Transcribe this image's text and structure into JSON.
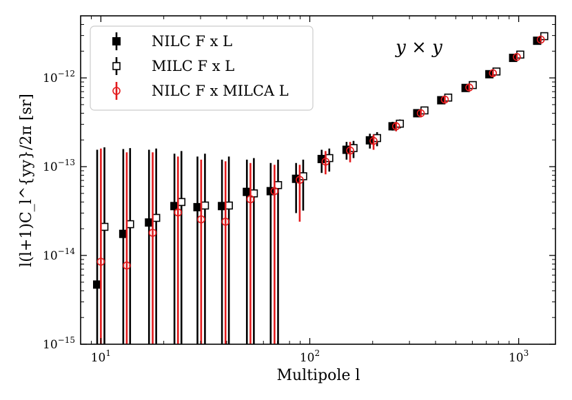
{
  "chart_data": {
    "type": "scatter",
    "x_scale": "log",
    "y_scale": "log",
    "xlim": [
      8,
      1500
    ],
    "ylim": [
      1e-15,
      5e-12
    ],
    "xlabel": "Multipole l",
    "ylabel": "l(l+1)C_l^{yy}/2π [sr]",
    "annotation": "y × y",
    "legend_position": "upper-left",
    "x_ticks": [
      {
        "value": 10,
        "base": "10",
        "exp": "1"
      },
      {
        "value": 100,
        "base": "10",
        "exp": "2"
      },
      {
        "value": 1000,
        "base": "10",
        "exp": "3"
      }
    ],
    "y_ticks": [
      {
        "value": 1e-15,
        "base": "10",
        "exp": "−15"
      },
      {
        "value": 1e-14,
        "base": "10",
        "exp": "−14"
      },
      {
        "value": 1e-13,
        "base": "10",
        "exp": "−13"
      },
      {
        "value": 1e-12,
        "base": "10",
        "exp": "−12"
      }
    ],
    "series": [
      {
        "name": "NILC F x L",
        "marker": "filled-square",
        "color": "#000000",
        "x": [
          9.6,
          12.8,
          17,
          22.5,
          29,
          38,
          50,
          65,
          86,
          114,
          150,
          194,
          249,
          327,
          426,
          557,
          724,
          941,
          1226
        ],
        "y": [
          4.7e-15,
          1.75e-14,
          2.35e-14,
          3.6e-14,
          3.5e-14,
          3.6e-14,
          5.2e-14,
          5.3e-14,
          7.3e-14,
          1.22e-13,
          1.55e-13,
          1.98e-13,
          2.85e-13,
          4e-13,
          5.6e-13,
          7.7e-13,
          1.1e-12,
          1.68e-12,
          2.62e-12
        ],
        "yerr_low": [
          1e-15,
          1e-15,
          1e-15,
          1e-15,
          1e-15,
          1e-15,
          1e-15,
          1e-15,
          3e-14,
          8.5e-14,
          1.2e-13,
          1.6e-13,
          2.55e-13,
          3.6e-13,
          5.1e-13,
          7.1e-13,
          1.02e-12,
          1.58e-12,
          2.48e-12
        ],
        "yerr_high": [
          1.55e-13,
          1.58e-13,
          1.55e-13,
          1.4e-13,
          1.3e-13,
          1.2e-13,
          1.2e-13,
          1.1e-13,
          1.1e-13,
          1.55e-13,
          1.9e-13,
          2.35e-13,
          3.2e-13,
          4.4e-13,
          6.1e-13,
          8.4e-13,
          1.2e-12,
          1.8e-12,
          2.8e-12
        ]
      },
      {
        "name": "MILC F x L",
        "marker": "open-square",
        "color": "#000000",
        "x": [
          10.4,
          13.8,
          18.4,
          24.3,
          31.5,
          41,
          54,
          70.5,
          93,
          124,
          162,
          210,
          270,
          354,
          460,
          603,
          783,
          1018,
          1326
        ],
        "y": [
          2.1e-14,
          2.25e-14,
          2.65e-14,
          4e-14,
          3.65e-14,
          3.65e-14,
          5e-14,
          6.2e-14,
          7.8e-14,
          1.25e-13,
          1.62e-13,
          2.1e-13,
          3.05e-13,
          4.3e-13,
          6e-13,
          8.3e-13,
          1.18e-12,
          1.83e-12,
          2.95e-12
        ],
        "yerr_low": [
          1e-15,
          1e-15,
          1e-15,
          1e-15,
          1e-15,
          1e-15,
          1e-15,
          1e-15,
          3.2e-14,
          8.8e-14,
          1.25e-13,
          1.7e-13,
          2.7e-13,
          3.9e-13,
          5.5e-13,
          7.7e-13,
          1.1e-12,
          1.72e-12,
          2.8e-12
        ],
        "yerr_high": [
          1.65e-13,
          1.62e-13,
          1.6e-13,
          1.5e-13,
          1.4e-13,
          1.3e-13,
          1.25e-13,
          1.2e-13,
          1.2e-13,
          1.6e-13,
          1.95e-13,
          2.45e-13,
          3.4e-13,
          4.7e-13,
          6.5e-13,
          8.9e-13,
          1.26e-12,
          1.95e-12,
          3.1e-12
        ]
      },
      {
        "name": "NILC F x MILCA L",
        "marker": "open-circle",
        "color": "#e31a1c",
        "x": [
          10,
          13.3,
          17.7,
          23.4,
          30.2,
          39.5,
          52,
          67.8,
          89.5,
          119,
          156,
          202,
          259,
          340,
          443,
          580,
          753,
          980,
          1276
        ],
        "y": [
          8.5e-15,
          7.7e-15,
          1.8e-14,
          3.05e-14,
          2.55e-14,
          2.4e-14,
          4.3e-14,
          5.3e-14,
          7.1e-14,
          1.14e-13,
          1.52e-13,
          1.95e-13,
          2.85e-13,
          4e-13,
          5.7e-13,
          7.8e-13,
          1.13e-12,
          1.72e-12,
          2.7e-12
        ],
        "yerr_low": [
          1e-15,
          1e-15,
          1e-15,
          1e-15,
          1e-15,
          1e-15,
          1e-15,
          1e-15,
          2.4e-14,
          8.2e-14,
          1.12e-13,
          1.55e-13,
          2.5e-13,
          3.6e-13,
          5.2e-13,
          7.2e-13,
          1.05e-12,
          1.62e-12,
          2.56e-12
        ],
        "yerr_high": [
          1.6e-13,
          1.45e-13,
          1.45e-13,
          1.3e-13,
          1.2e-13,
          1.15e-13,
          1.1e-13,
          1.05e-13,
          1.05e-13,
          1.5e-13,
          1.9e-13,
          2.3e-13,
          3.2e-13,
          4.4e-13,
          6.2e-13,
          8.5e-13,
          1.2e-12,
          1.82e-12,
          2.85e-12
        ]
      }
    ]
  }
}
